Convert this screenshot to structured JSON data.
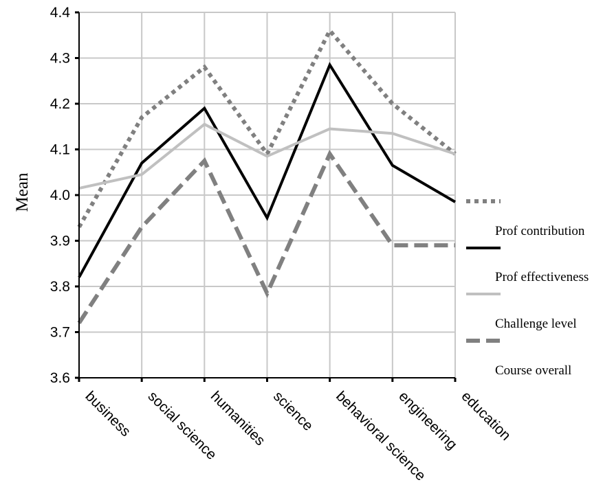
{
  "chart_data": {
    "type": "line",
    "title": "",
    "xlabel": "",
    "ylabel": "Mean",
    "ylim": [
      3.6,
      4.4
    ],
    "yticks": [
      "3.6",
      "3.7",
      "3.8",
      "3.9",
      "4.0",
      "4.1",
      "4.2",
      "4.3",
      "4.4"
    ],
    "grid": true,
    "legend_position": "right",
    "categories": [
      "business",
      "social science",
      "humanities",
      "science",
      "behavioral science",
      "engineering",
      "education"
    ],
    "series": [
      {
        "name": "",
        "style": "dotted",
        "color": "#808080",
        "values": [
          3.93,
          4.17,
          4.28,
          4.09,
          4.36,
          4.2,
          4.09
        ]
      },
      {
        "name": "",
        "style": "solid",
        "color": "#000000",
        "values": [
          3.82,
          4.07,
          4.19,
          3.95,
          4.285,
          4.065,
          3.985
        ]
      },
      {
        "name": "",
        "style": "solid",
        "color": "#c0c0c0",
        "values": [
          4.015,
          4.045,
          4.155,
          4.085,
          4.145,
          4.135,
          4.09
        ]
      },
      {
        "name": "",
        "style": "dashed",
        "color": "#808080",
        "values": [
          3.72,
          3.93,
          4.075,
          3.785,
          4.09,
          3.89,
          3.89
        ]
      }
    ],
    "legend_labels": [
      "Prof contribution",
      "Prof effectiveness",
      "Challenge level",
      "Course overall"
    ]
  }
}
